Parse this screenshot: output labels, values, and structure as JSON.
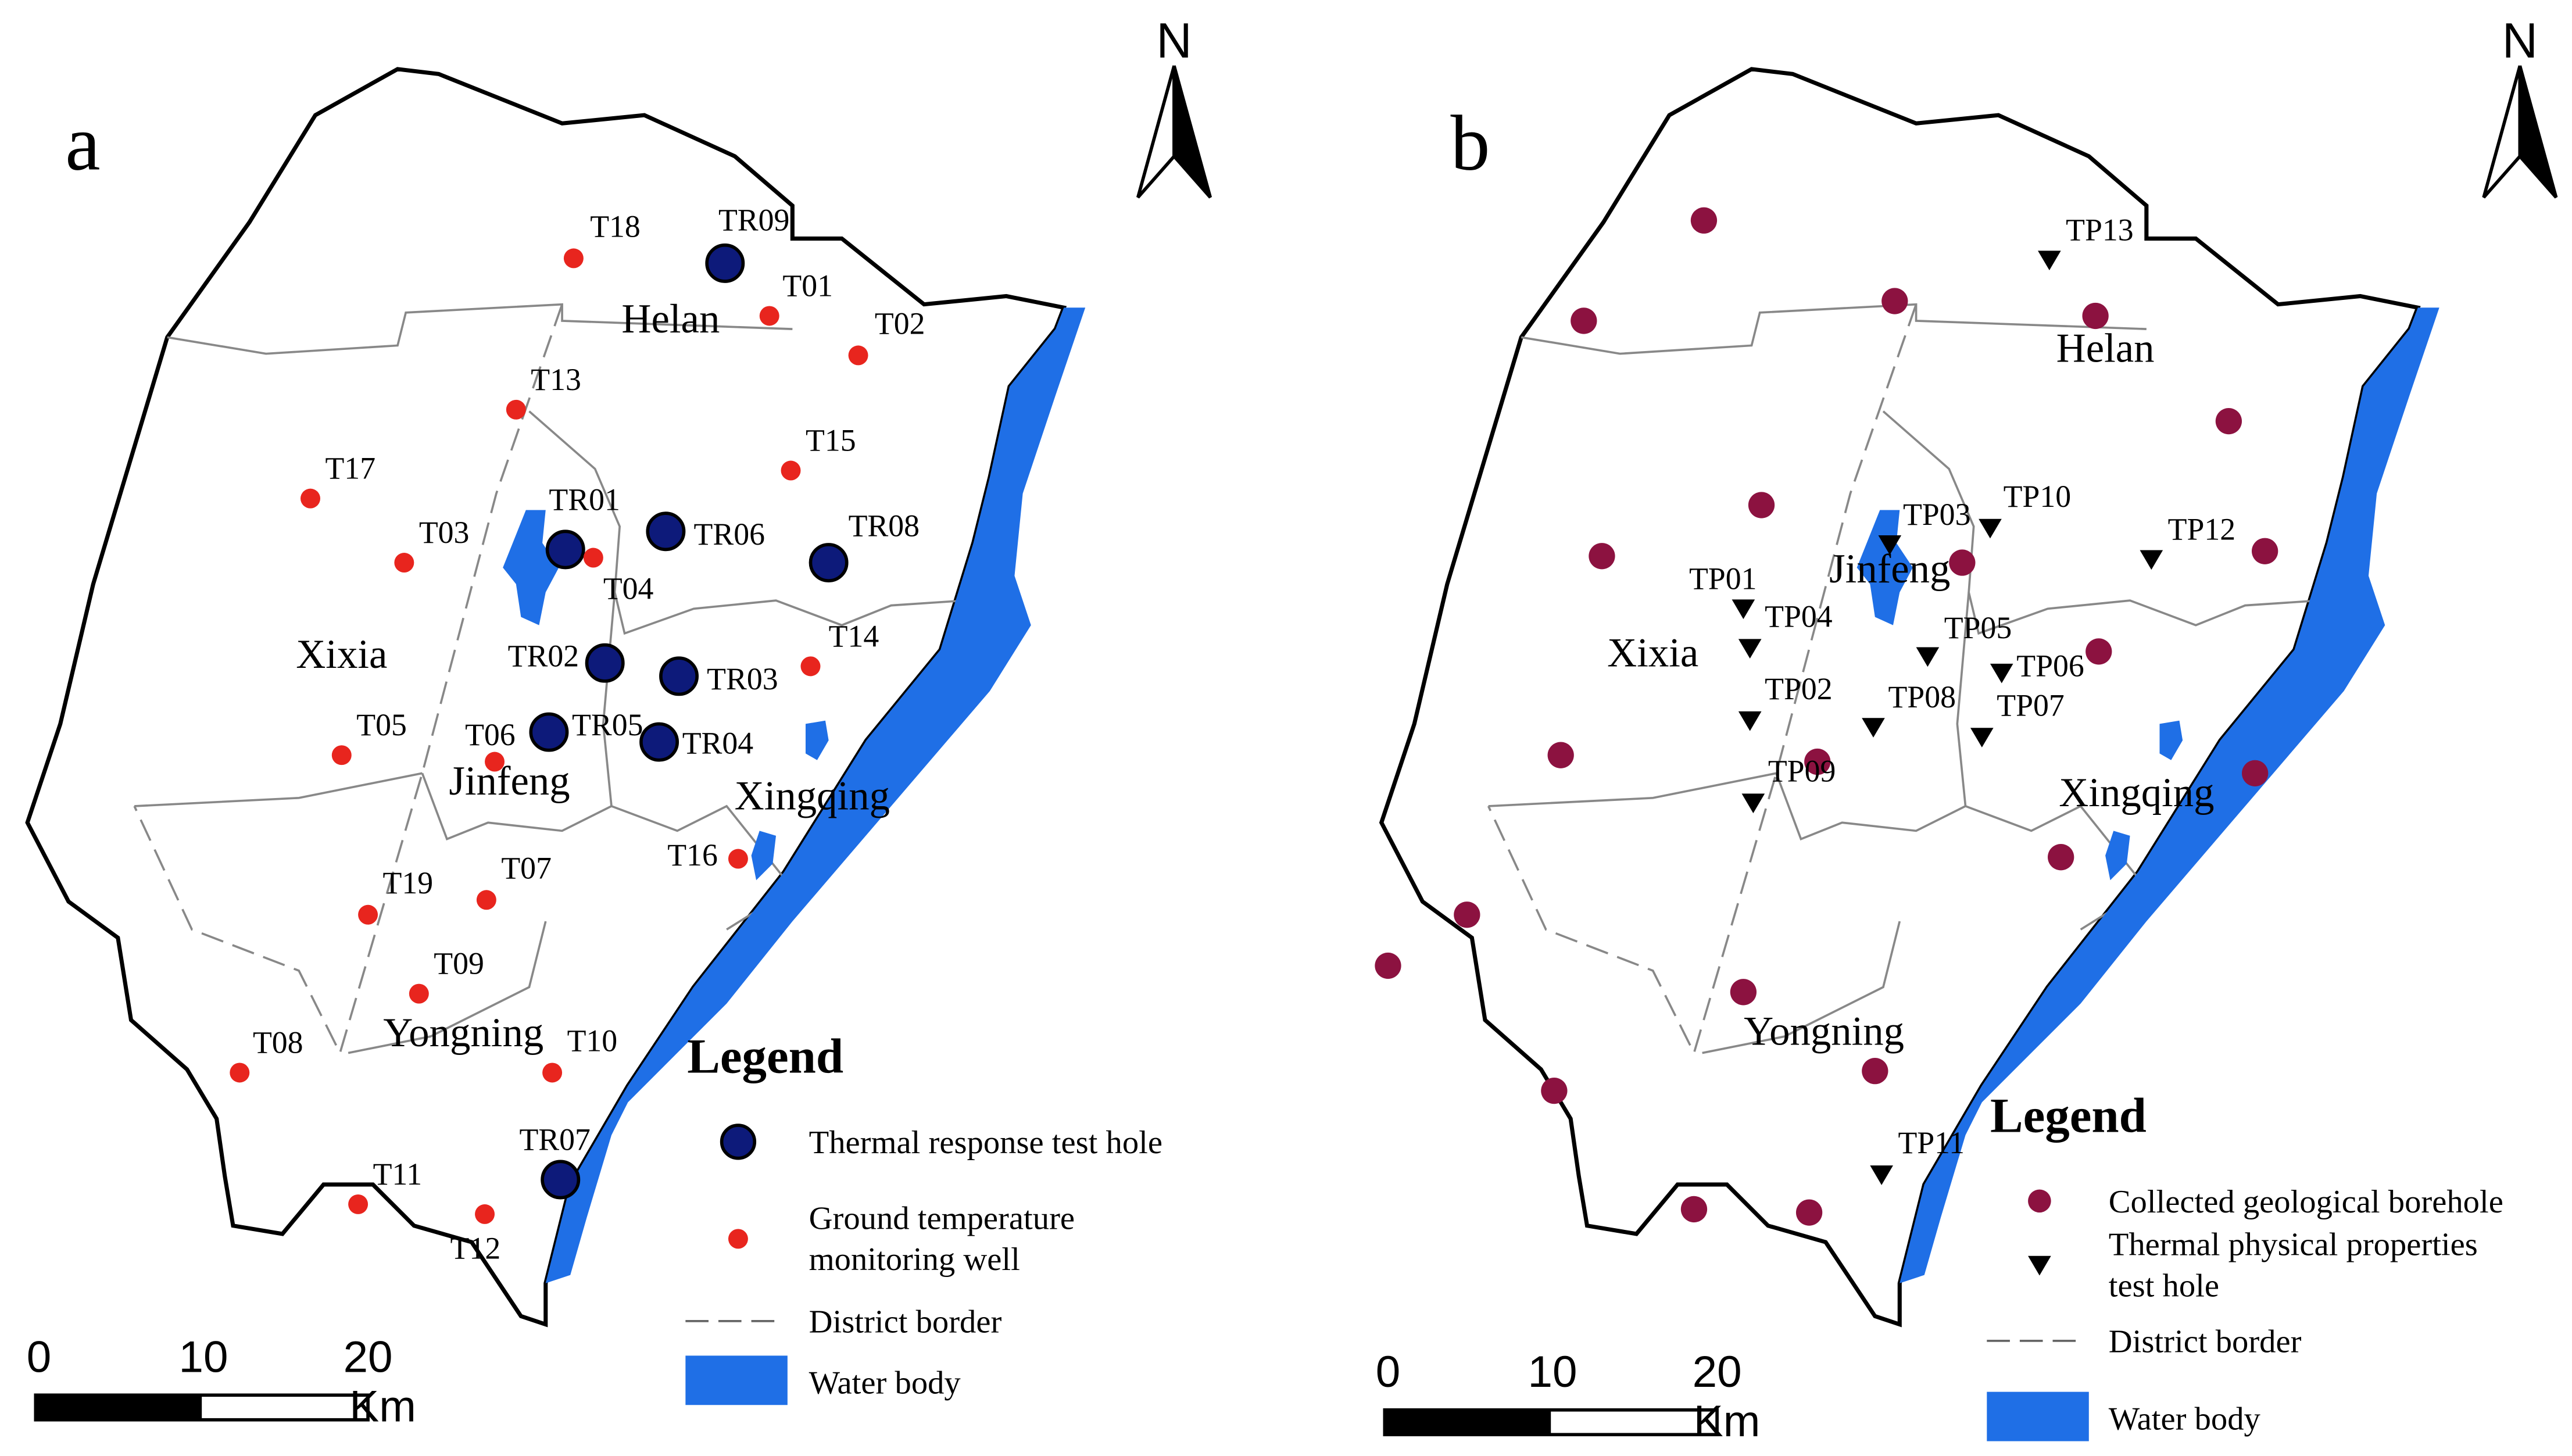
{
  "panels": [
    {
      "letter": "a",
      "north": "N",
      "districts": [
        "Helan",
        "Xixia",
        "Jinfeng",
        "Xingqing",
        "Yongning"
      ],
      "tr_holes": [
        "TR09",
        "TR01",
        "TR06",
        "TR08",
        "TR02",
        "TR03",
        "TR05",
        "TR04",
        "TR07"
      ],
      "temp_wells": [
        "T18",
        "T01",
        "T02",
        "T13",
        "T15",
        "T17",
        "T03",
        "T04",
        "T14",
        "T05",
        "T06",
        "T16",
        "T19",
        "T07",
        "T09",
        "T10",
        "T08",
        "T11",
        "T12"
      ],
      "legend": {
        "title": "Legend",
        "items": [
          {
            "lines": [
              "Thermal response test hole"
            ]
          },
          {
            "lines": [
              "Ground temperature",
              "monitoring well"
            ]
          },
          {
            "lines": [
              "District border"
            ]
          },
          {
            "lines": [
              "Water body"
            ]
          }
        ]
      },
      "scale": {
        "ticks": [
          "0",
          "10",
          "20"
        ],
        "unit": "Km"
      }
    },
    {
      "letter": "b",
      "north": "N",
      "districts": [
        "Helan",
        "Jinfeng",
        "Xixia",
        "Xingqing",
        "Yongning"
      ],
      "tp_holes": [
        "TP13",
        "TP03",
        "TP10",
        "TP12",
        "TP01",
        "TP04",
        "TP05",
        "TP06",
        "TP02",
        "TP08",
        "TP07",
        "TP09",
        "TP11"
      ],
      "legend": {
        "title": "Legend",
        "items": [
          {
            "lines": [
              "Collected geological borehole"
            ]
          },
          {
            "lines": [
              "Thermal physical properties",
              " test hole"
            ]
          },
          {
            "lines": [
              "District border"
            ]
          },
          {
            "lines": [
              "Water body"
            ]
          }
        ]
      },
      "scale": {
        "ticks": [
          "0",
          "10",
          "20"
        ],
        "unit": "Km"
      }
    }
  ]
}
